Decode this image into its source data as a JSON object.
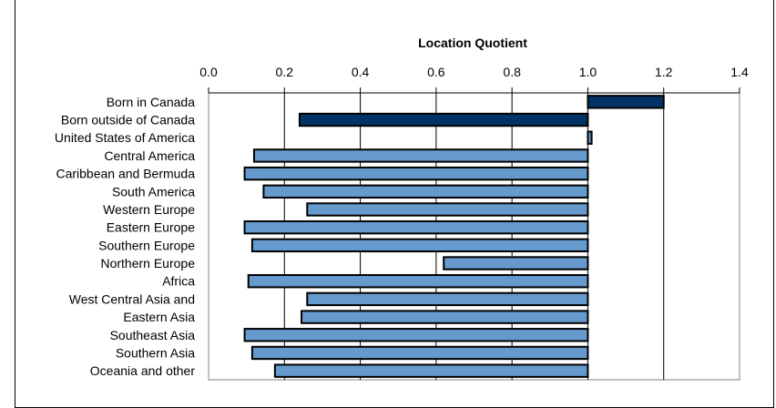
{
  "chart_data": {
    "type": "bar",
    "orientation": "horizontal",
    "title": "Location Quotient",
    "xlim": [
      0,
      1.4
    ],
    "xticks": [
      "0.0",
      "0.2",
      "0.4",
      "0.6",
      "0.8",
      "1.0",
      "1.2",
      "1.4"
    ],
    "baseline": 1.0,
    "axis_position": "top",
    "grid": "vertical",
    "categories": [
      "Born in Canada",
      "Born outside of Canada",
      "United States of America",
      "Central America",
      "Caribbean and Bermuda",
      "South America",
      "Western Europe",
      "Eastern Europe",
      "Southern Europe",
      "Northern Europe",
      "Africa",
      "West Central Asia and",
      "Eastern Asia",
      "Southeast Asia",
      "Southern Asia",
      "Oceania and other"
    ],
    "values": [
      1.2,
      0.24,
      1.01,
      0.12,
      0.095,
      0.145,
      0.26,
      0.095,
      0.115,
      0.62,
      0.105,
      0.26,
      0.245,
      0.095,
      0.115,
      0.175
    ],
    "colors": [
      "#003366",
      "#003366",
      "#6699cc",
      "#6699cc",
      "#6699cc",
      "#6699cc",
      "#6699cc",
      "#6699cc",
      "#6699cc",
      "#6699cc",
      "#6699cc",
      "#6699cc",
      "#6699cc",
      "#6699cc",
      "#6699cc",
      "#6699cc"
    ]
  }
}
